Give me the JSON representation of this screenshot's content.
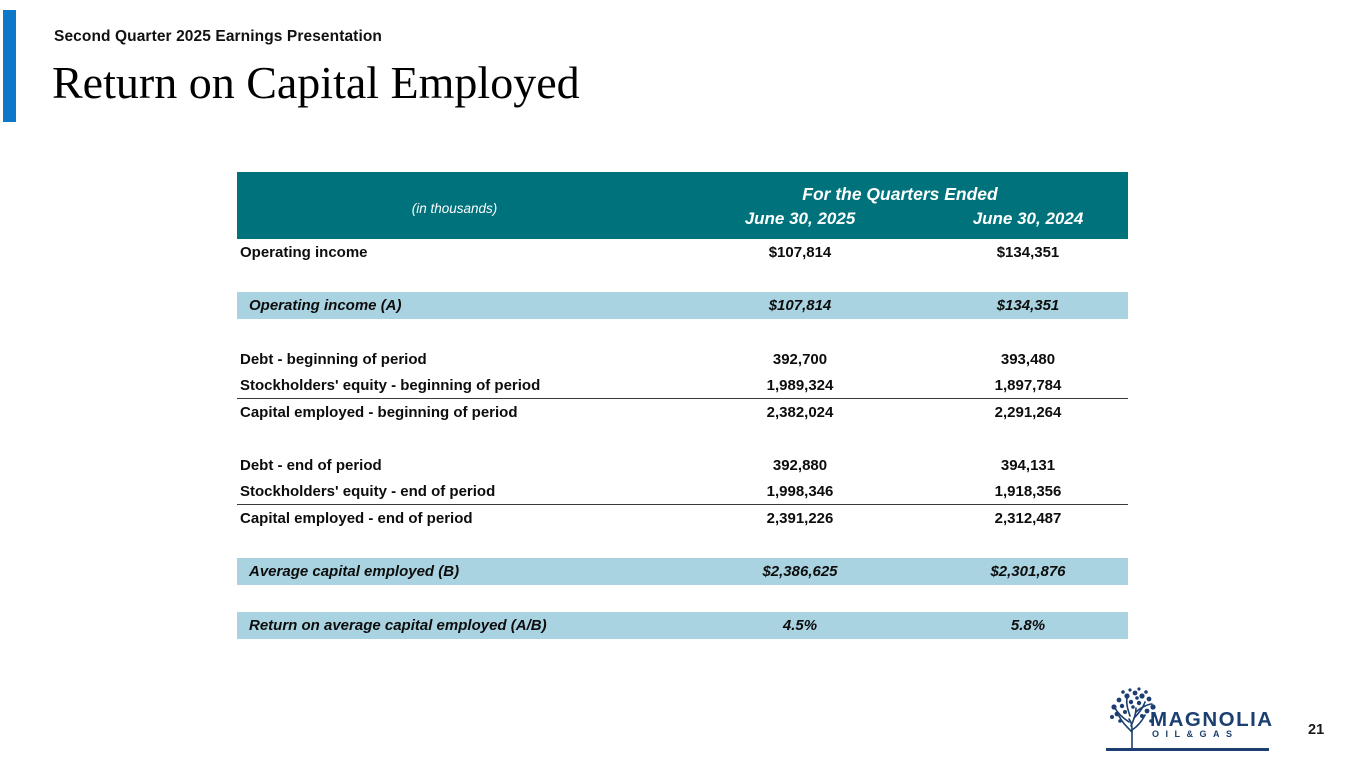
{
  "slide": {
    "eyebrow": "Second Quarter 2025 Earnings Presentation",
    "title": "Return on Capital Employed",
    "page_number": "21"
  },
  "colors": {
    "accent_bar": "#0d78c8",
    "header_bg": "#00727b",
    "highlight_bg": "#a9d3e1",
    "logo_navy": "#1b3f70"
  },
  "table": {
    "unit_label": "(in thousands)",
    "header_group": "For the Quarters Ended",
    "columns": [
      "June 30, 2025",
      "June 30, 2024"
    ],
    "rows": [
      {
        "type": "data",
        "label": "Operating income",
        "values": [
          "$107,814",
          "$134,351"
        ],
        "highlight": false,
        "underline": false
      },
      {
        "type": "spacer"
      },
      {
        "type": "data",
        "label": "Operating income (A)",
        "values": [
          "$107,814",
          "$134,351"
        ],
        "highlight": true,
        "underline": false
      },
      {
        "type": "spacer"
      },
      {
        "type": "data",
        "label": "Debt - beginning of period",
        "values": [
          "392,700",
          "393,480"
        ],
        "highlight": false,
        "underline": false
      },
      {
        "type": "data",
        "label": "Stockholders' equity - beginning of period",
        "values": [
          "1,989,324",
          "1,897,784"
        ],
        "highlight": false,
        "underline": true
      },
      {
        "type": "data",
        "label": "Capital employed - beginning of period",
        "values": [
          "2,382,024",
          "2,291,264"
        ],
        "highlight": false,
        "underline": false
      },
      {
        "type": "spacer"
      },
      {
        "type": "data",
        "label": "Debt - end of period",
        "values": [
          "392,880",
          "394,131"
        ],
        "highlight": false,
        "underline": false
      },
      {
        "type": "data",
        "label": "Stockholders' equity - end of period",
        "values": [
          "1,998,346",
          "1,918,356"
        ],
        "highlight": false,
        "underline": true
      },
      {
        "type": "data",
        "label": "Capital employed - end of period",
        "values": [
          "2,391,226",
          "2,312,487"
        ],
        "highlight": false,
        "underline": false
      },
      {
        "type": "spacer"
      },
      {
        "type": "data",
        "label": "Average capital employed (B)",
        "values": [
          "$2,386,625",
          "$2,301,876"
        ],
        "highlight": true,
        "underline": false
      },
      {
        "type": "spacer"
      },
      {
        "type": "data",
        "label": "Return on average capital employed (A/B)",
        "values": [
          "4.5%",
          "5.8%"
        ],
        "highlight": true,
        "underline": false
      }
    ]
  },
  "logo": {
    "wordmark": "MAGNOLIA",
    "subline": "OIL&GAS"
  }
}
